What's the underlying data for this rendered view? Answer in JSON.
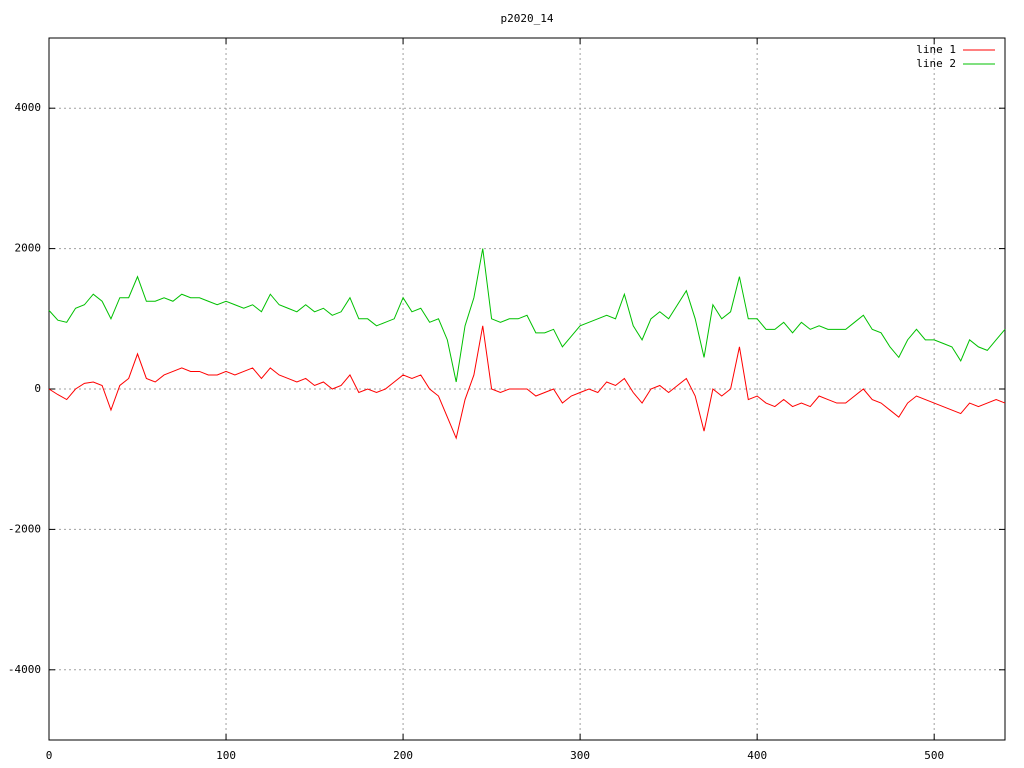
{
  "chart_data": {
    "type": "line",
    "title": "p2020_14",
    "x": [
      0,
      5,
      10,
      15,
      20,
      25,
      30,
      35,
      40,
      45,
      50,
      55,
      60,
      65,
      70,
      75,
      80,
      85,
      90,
      95,
      100,
      105,
      110,
      115,
      120,
      125,
      130,
      135,
      140,
      145,
      150,
      155,
      160,
      165,
      170,
      175,
      180,
      185,
      190,
      195,
      200,
      205,
      210,
      215,
      220,
      225,
      230,
      235,
      240,
      245,
      250,
      255,
      260,
      265,
      270,
      275,
      280,
      285,
      290,
      295,
      300,
      305,
      310,
      315,
      320,
      325,
      330,
      335,
      340,
      345,
      350,
      355,
      360,
      365,
      370,
      375,
      380,
      385,
      390,
      395,
      400,
      405,
      410,
      415,
      420,
      425,
      430,
      435,
      440,
      445,
      450,
      455,
      460,
      465,
      470,
      475,
      480,
      485,
      490,
      495,
      500,
      505,
      510,
      515,
      520,
      525,
      530,
      535,
      540
    ],
    "series": [
      {
        "name": "line 1",
        "color": "#ff0000",
        "values": [
          0,
          -80,
          -150,
          0,
          80,
          100,
          50,
          -300,
          50,
          150,
          500,
          150,
          100,
          200,
          250,
          300,
          250,
          250,
          200,
          200,
          250,
          200,
          250,
          300,
          150,
          300,
          200,
          150,
          100,
          150,
          50,
          100,
          0,
          50,
          200,
          -50,
          0,
          -50,
          0,
          100,
          200,
          150,
          200,
          0,
          -100,
          -400,
          -700,
          -150,
          200,
          900,
          0,
          -50,
          0,
          0,
          0,
          -100,
          -50,
          0,
          -200,
          -100,
          -50,
          0,
          -50,
          100,
          50,
          150,
          -50,
          -200,
          0,
          50,
          -50,
          50,
          150,
          -100,
          -600,
          0,
          -100,
          0,
          600,
          -150,
          -100,
          -200,
          -250,
          -150,
          -250,
          -200,
          -250,
          -100,
          -150,
          -200,
          -200,
          -100,
          0,
          -150,
          -200,
          -300,
          -400,
          -200,
          -100,
          -150,
          -200,
          -250,
          -300,
          -350,
          -200,
          -250,
          -200,
          -150,
          -200
        ]
      },
      {
        "name": "line 2",
        "color": "#00c000",
        "values": [
          1120,
          980,
          950,
          1150,
          1200,
          1350,
          1250,
          1000,
          1300,
          1300,
          1600,
          1250,
          1250,
          1300,
          1250,
          1350,
          1300,
          1300,
          1250,
          1200,
          1250,
          1200,
          1150,
          1200,
          1100,
          1350,
          1200,
          1150,
          1100,
          1200,
          1100,
          1150,
          1050,
          1100,
          1300,
          1000,
          1000,
          900,
          950,
          1000,
          1300,
          1100,
          1150,
          950,
          1000,
          700,
          100,
          900,
          1300,
          2000,
          1000,
          950,
          1000,
          1000,
          1050,
          800,
          800,
          850,
          600,
          750,
          900,
          950,
          1000,
          1050,
          1000,
          1350,
          900,
          700,
          1000,
          1100,
          1000,
          1200,
          1400,
          1000,
          450,
          1200,
          1000,
          1100,
          1600,
          1000,
          1000,
          850,
          850,
          950,
          800,
          950,
          850,
          900,
          850,
          850,
          850,
          950,
          1050,
          850,
          800,
          600,
          450,
          700,
          850,
          700,
          700,
          650,
          600,
          400,
          700,
          600,
          550,
          700,
          850
        ]
      }
    ],
    "xlim": [
      0,
      540
    ],
    "ylim": [
      -5000,
      5000
    ],
    "xticks": [
      0,
      100,
      200,
      300,
      400,
      500
    ],
    "yticks": [
      -4000,
      -2000,
      0,
      2000,
      4000
    ],
    "grid": true,
    "legend": "top-right"
  }
}
